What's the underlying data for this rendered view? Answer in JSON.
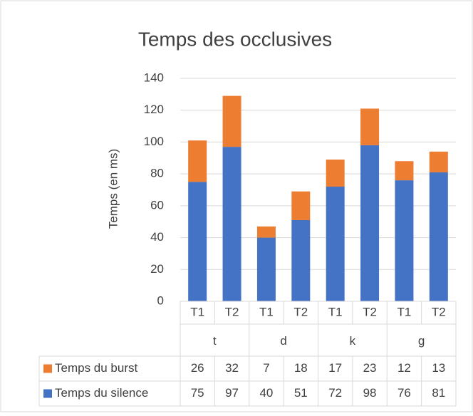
{
  "chart_data": {
    "type": "stacked_bar",
    "title": "Temps des occlusives",
    "y_label": "Temps (en ms)",
    "categories": [
      "T1",
      "T2",
      "T1",
      "T2",
      "T1",
      "T2",
      "T1",
      "T2"
    ],
    "groups": [
      "t",
      "d",
      "k",
      "g"
    ],
    "series": [
      {
        "name": "Temps du silence",
        "color": "#4472c4",
        "values": [
          75,
          97,
          40,
          51,
          72,
          98,
          76,
          81
        ]
      },
      {
        "name": "Temps du burst",
        "color": "#ed7d31",
        "values": [
          26,
          32,
          7,
          18,
          17,
          23,
          12,
          13
        ]
      }
    ],
    "ylim": [
      0,
      140
    ],
    "yticks": [
      0,
      20,
      40,
      60,
      80,
      100,
      120,
      140
    ],
    "grid": true,
    "data_table": true
  }
}
